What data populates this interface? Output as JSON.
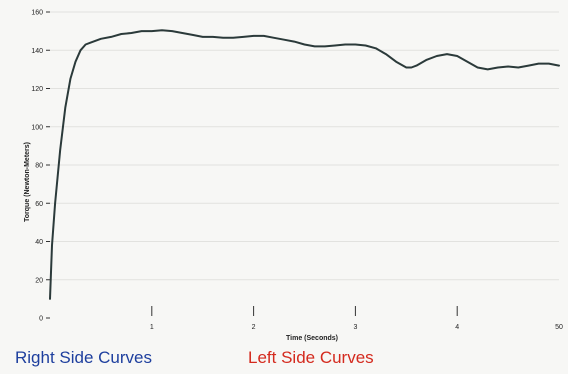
{
  "chart_data": {
    "type": "line",
    "xlabel": "Time (Seconds)",
    "ylabel": "Torque (Newton-Meters)",
    "xlim": [
      0,
      5
    ],
    "ylim": [
      0,
      160
    ],
    "x_ticks": [
      1,
      2,
      3,
      4
    ],
    "x_tick_labels": [
      "1",
      "2",
      "3",
      "4"
    ],
    "x_end_label": "50",
    "y_ticks": [
      0,
      20,
      40,
      60,
      80,
      100,
      120,
      140,
      160
    ],
    "y_tick_labels": [
      "0",
      "20",
      "40",
      "60",
      "80",
      "100",
      "120",
      "140",
      "160"
    ],
    "grid": true,
    "series": [
      {
        "color": "#2b3a3a",
        "x": [
          0.0,
          0.02,
          0.05,
          0.1,
          0.15,
          0.2,
          0.25,
          0.3,
          0.35,
          0.4,
          0.5,
          0.6,
          0.7,
          0.8,
          0.9,
          1.0,
          1.1,
          1.2,
          1.3,
          1.4,
          1.5,
          1.6,
          1.7,
          1.8,
          1.9,
          2.0,
          2.1,
          2.2,
          2.3,
          2.4,
          2.5,
          2.6,
          2.7,
          2.8,
          2.9,
          3.0,
          3.1,
          3.2,
          3.3,
          3.4,
          3.5,
          3.55,
          3.6,
          3.7,
          3.8,
          3.9,
          4.0,
          4.1,
          4.2,
          4.3,
          4.4,
          4.5,
          4.6,
          4.7,
          4.8,
          4.9,
          5.0
        ],
        "y": [
          10,
          38,
          60,
          88,
          110,
          125,
          134,
          140,
          143,
          144,
          146,
          147,
          148.5,
          149,
          150,
          150,
          150.5,
          150,
          149,
          148,
          147,
          147,
          146.5,
          146.5,
          147,
          147.5,
          147.5,
          146.5,
          145.5,
          144.5,
          143,
          142,
          142,
          142.5,
          143,
          143,
          142.5,
          141,
          138,
          134,
          131,
          131,
          132,
          135,
          137,
          138,
          137,
          134,
          131,
          130,
          131,
          131.5,
          131,
          132,
          133,
          133,
          132
        ]
      }
    ]
  },
  "footer": {
    "right_label": "Right Side Curves",
    "left_label": "Left Side Curves"
  }
}
